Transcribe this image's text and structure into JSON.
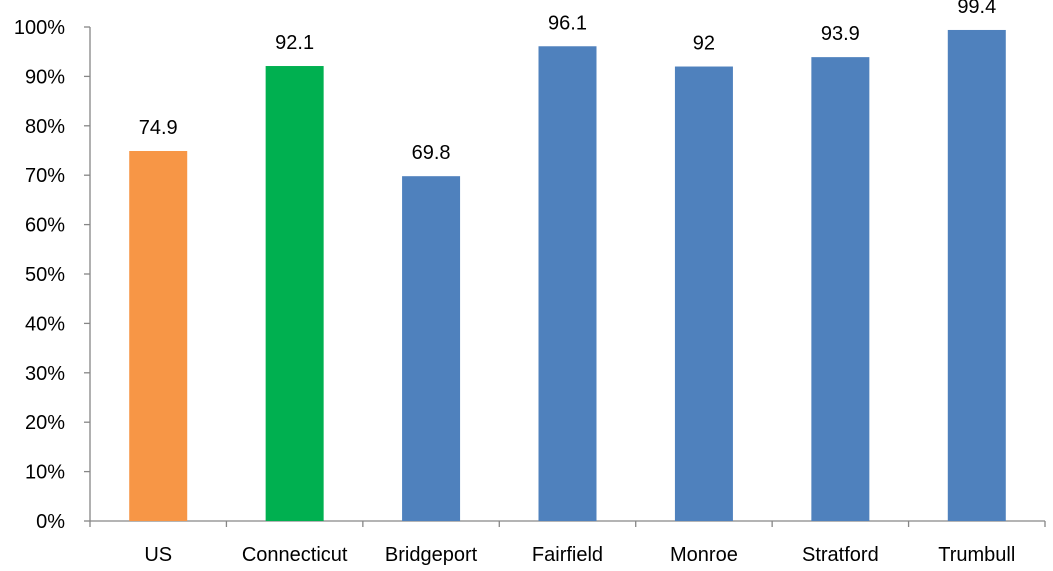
{
  "chart_data": {
    "type": "bar",
    "title": "",
    "xlabel": "",
    "ylabel": "",
    "categories": [
      "US",
      "Connecticut",
      "Bridgeport",
      "Fairfield",
      "Monroe",
      "Stratford",
      "Trumbull"
    ],
    "values": [
      74.9,
      92.1,
      69.8,
      96.1,
      92,
      93.9,
      99.4
    ],
    "data_labels": [
      "74.9",
      "92.1",
      "69.8",
      "96.1",
      "92",
      "93.9",
      "99.4"
    ],
    "bar_colors": [
      "#F79646",
      "#00B050",
      "#4F81BD",
      "#4F81BD",
      "#4F81BD",
      "#4F81BD",
      "#4F81BD"
    ],
    "ylim": [
      0,
      100
    ],
    "y_ticks": [
      0,
      10,
      20,
      30,
      40,
      50,
      60,
      70,
      80,
      90,
      100
    ],
    "y_tick_labels": [
      "0%",
      "10%",
      "20%",
      "30%",
      "40%",
      "50%",
      "60%",
      "70%",
      "80%",
      "90%",
      "100%"
    ],
    "grid": false,
    "legend": "none"
  }
}
